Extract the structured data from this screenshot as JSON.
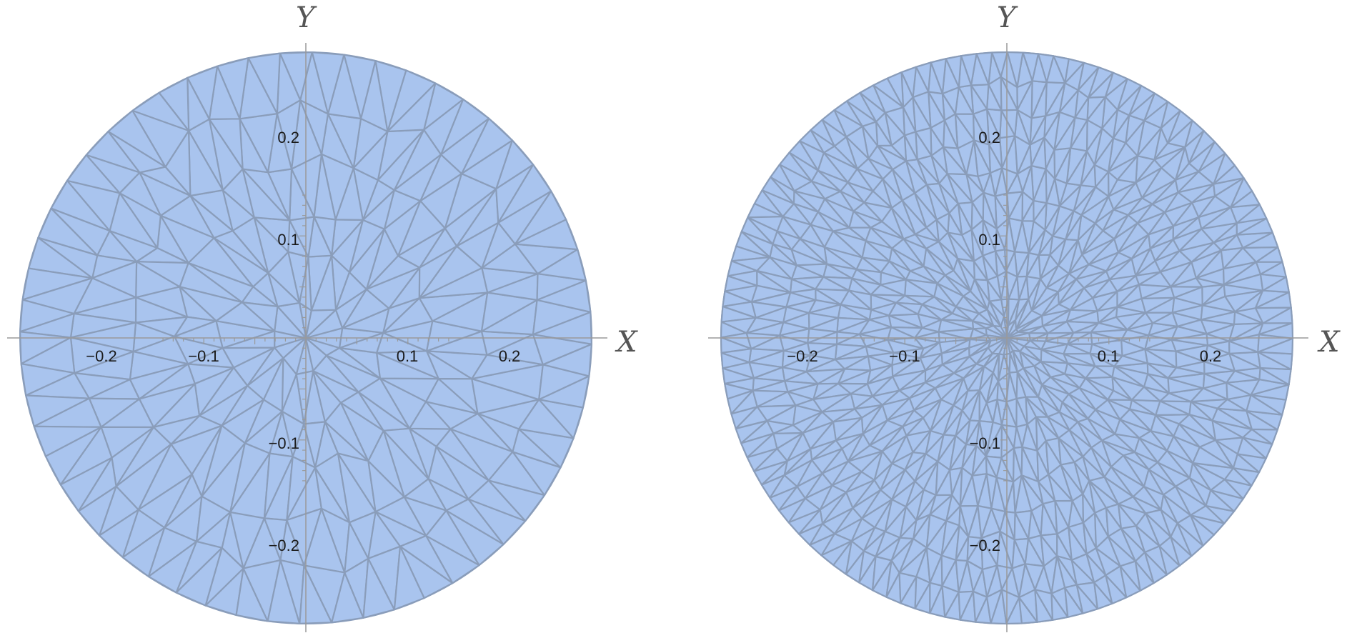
{
  "plots": [
    {
      "id": "coarse-mesh",
      "x_axis_label": "X",
      "y_axis_label": "Y",
      "x_ticks": [
        "−0.2",
        "−0.1",
        "0.1",
        "0.2"
      ],
      "y_ticks": [
        "0.2",
        "0.1",
        "−0.1",
        "−0.2"
      ],
      "mesh": {
        "rings": 6,
        "outer_points": 56,
        "center_refinement": 1
      }
    },
    {
      "id": "fine-mesh",
      "x_axis_label": "X",
      "y_axis_label": "Y",
      "x_ticks": [
        "−0.2",
        "−0.1",
        "0.1",
        "0.2"
      ],
      "y_ticks": [
        "0.2",
        "0.1",
        "−0.1",
        "−0.2"
      ],
      "mesh": {
        "rings": 11,
        "outer_points": 116,
        "center_refinement": 2
      }
    }
  ],
  "colors": {
    "fill": "#a9c4ee",
    "edge": "#8a9dba",
    "axis": "#9a9a9a"
  }
}
